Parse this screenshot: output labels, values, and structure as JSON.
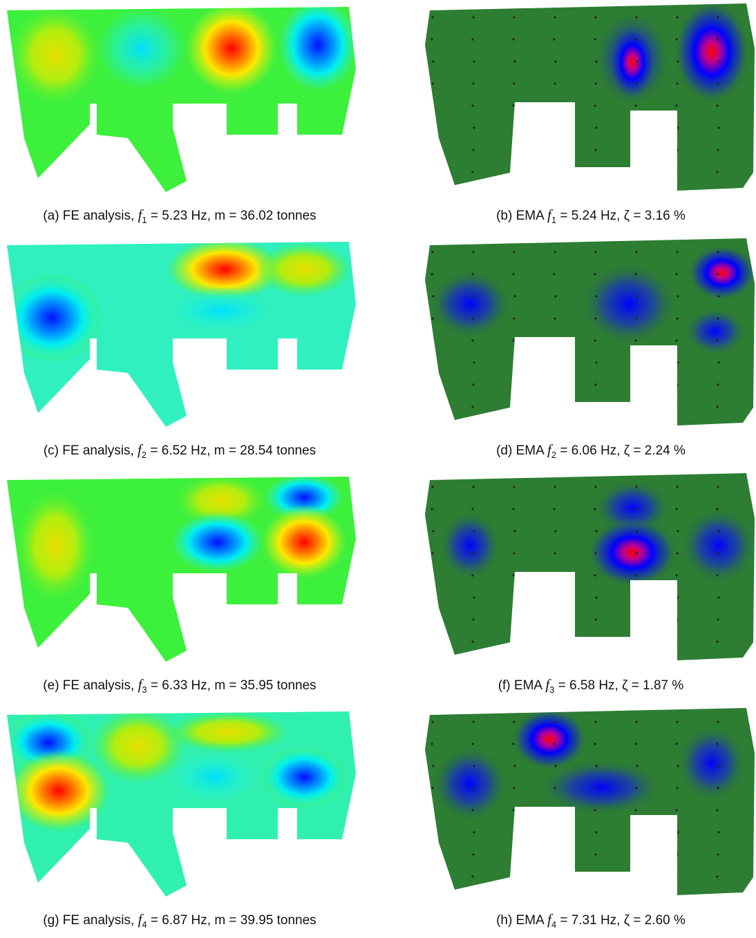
{
  "panels": [
    {
      "prefix": "(a) FE analysis, ",
      "var": "f",
      "sub": "1",
      "suffix": " = 5.23 Hz, m = 36.02 tonnes"
    },
    {
      "prefix": "(b) EMA ",
      "var": "f",
      "sub": "1",
      "suffix": " = 5.24 Hz, ζ = 3.16 %"
    },
    {
      "prefix": "(c) FE analysis, ",
      "var": "f",
      "sub": "2",
      "suffix": " = 6.52 Hz, m = 28.54 tonnes"
    },
    {
      "prefix": "(d) EMA ",
      "var": "f",
      "sub": "2",
      "suffix": " = 6.06 Hz, ζ = 2.24 %"
    },
    {
      "prefix": "(e) FE analysis, ",
      "var": "f",
      "sub": "3",
      "suffix": " = 6.33 Hz, m = 35.95 tonnes"
    },
    {
      "prefix": "(f) EMA ",
      "var": "f",
      "sub": "3",
      "suffix": " = 6.58 Hz, ζ = 1.87 %"
    },
    {
      "prefix": "(g) FE analysis, ",
      "var": "f",
      "sub": "4",
      "suffix": " = 6.87 Hz, m = 39.95 tonnes"
    },
    {
      "prefix": "(h) EMA ",
      "var": "f",
      "sub": "4",
      "suffix": " = 7.31 Hz, ζ = 2.60 %"
    }
  ]
}
